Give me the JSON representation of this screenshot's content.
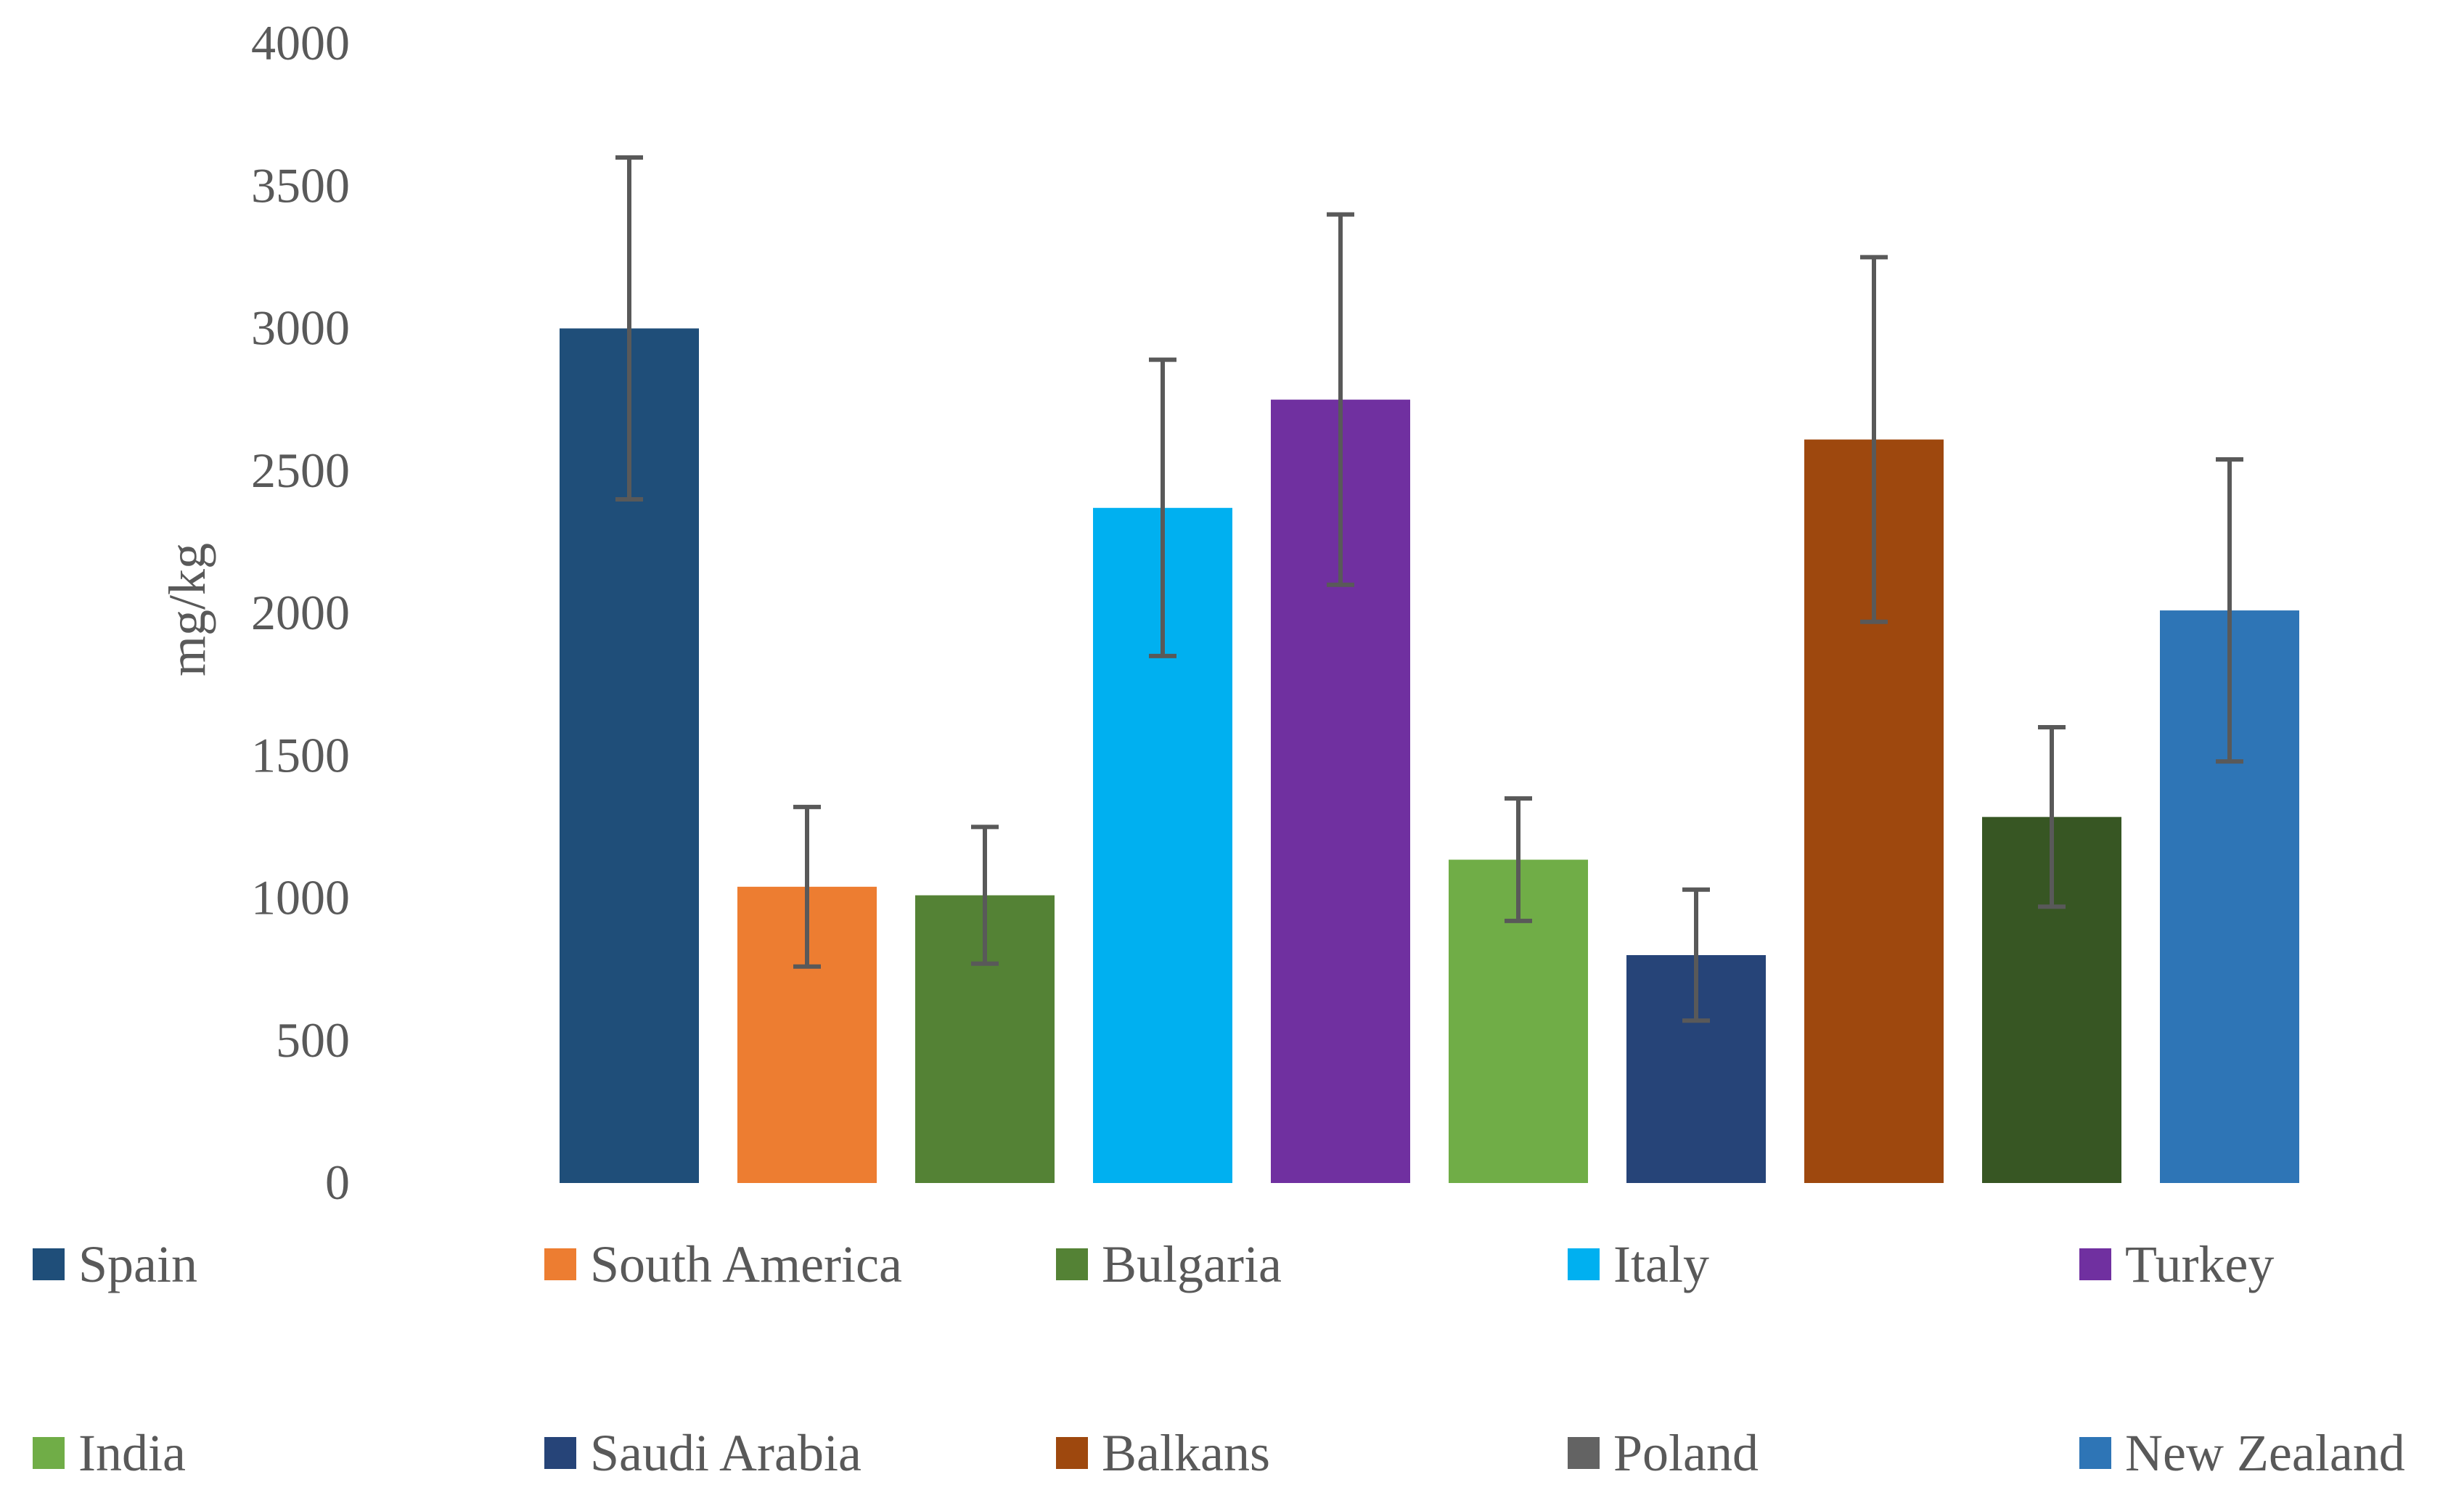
{
  "chart_data": {
    "type": "bar",
    "title": "",
    "xlabel": "",
    "ylabel": "mg/kg",
    "ylim": [
      0,
      4000
    ],
    "yticks": [
      0,
      500,
      1000,
      1500,
      2000,
      2500,
      3000,
      3500,
      4000
    ],
    "grid": false,
    "legend_position": "bottom",
    "categories": [
      "Spain",
      "South America",
      "Bulgaria",
      "Italy",
      "Turkey",
      "India",
      "Saudi Arabia",
      "Balkans",
      "Poland",
      "New Zealand"
    ],
    "values": [
      3000,
      1040,
      1010,
      2370,
      2750,
      1135,
      800,
      2610,
      1285,
      2010
    ],
    "error": [
      600,
      280,
      240,
      520,
      650,
      215,
      230,
      640,
      315,
      530
    ],
    "colors": [
      "#1F4E79",
      "#ED7D31",
      "#548235",
      "#00B0F0",
      "#7030A0",
      "#70AD47",
      "#264478",
      "#9E480E",
      "#375623",
      "#2E75B6"
    ],
    "legend_colors": [
      "#1F4E79",
      "#ED7D31",
      "#548235",
      "#00B0F0",
      "#7030A0",
      "#70AD47",
      "#264478",
      "#9E480E",
      "#636363",
      "#2E75B6"
    ],
    "error_bar_color": "#595959"
  }
}
